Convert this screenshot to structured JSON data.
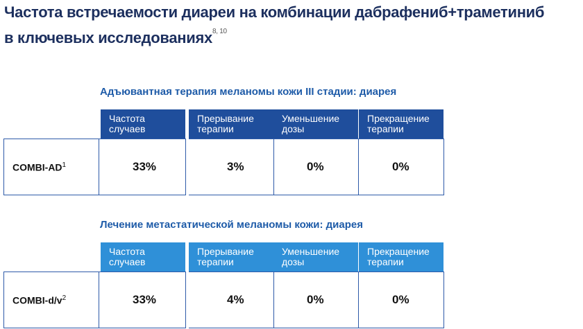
{
  "header": {
    "title_lines": [
      "Частота встречаемости диареи на комбинации дабрафениб+траметиниб",
      "в ключевых исследованиях"
    ],
    "title_refs": "8, 10"
  },
  "tables": [
    {
      "caption": "Адъювантная терапия меланомы кожи III стадии: диарея",
      "columns": [
        "Частота\nслучаев",
        "Прерывание\nтерапии",
        "Уменьшение\nдозы",
        "Прекращение\nтерапии"
      ],
      "row_label": "COMBI-AD",
      "row_ref": "1",
      "cells": [
        "33%",
        "3%",
        "0%",
        "0%"
      ]
    },
    {
      "caption": "Лечение метастатической меланомы кожи: диарея",
      "columns": [
        "Частота\nслучаев",
        "Прерывание\nтерапии",
        "Уменьшение\nдозы",
        "Прекращение\nтерапии"
      ],
      "row_label": "COMBI-d/v",
      "row_ref": "2",
      "cells": [
        "33%",
        "4%",
        "0%",
        "0%"
      ]
    }
  ]
}
